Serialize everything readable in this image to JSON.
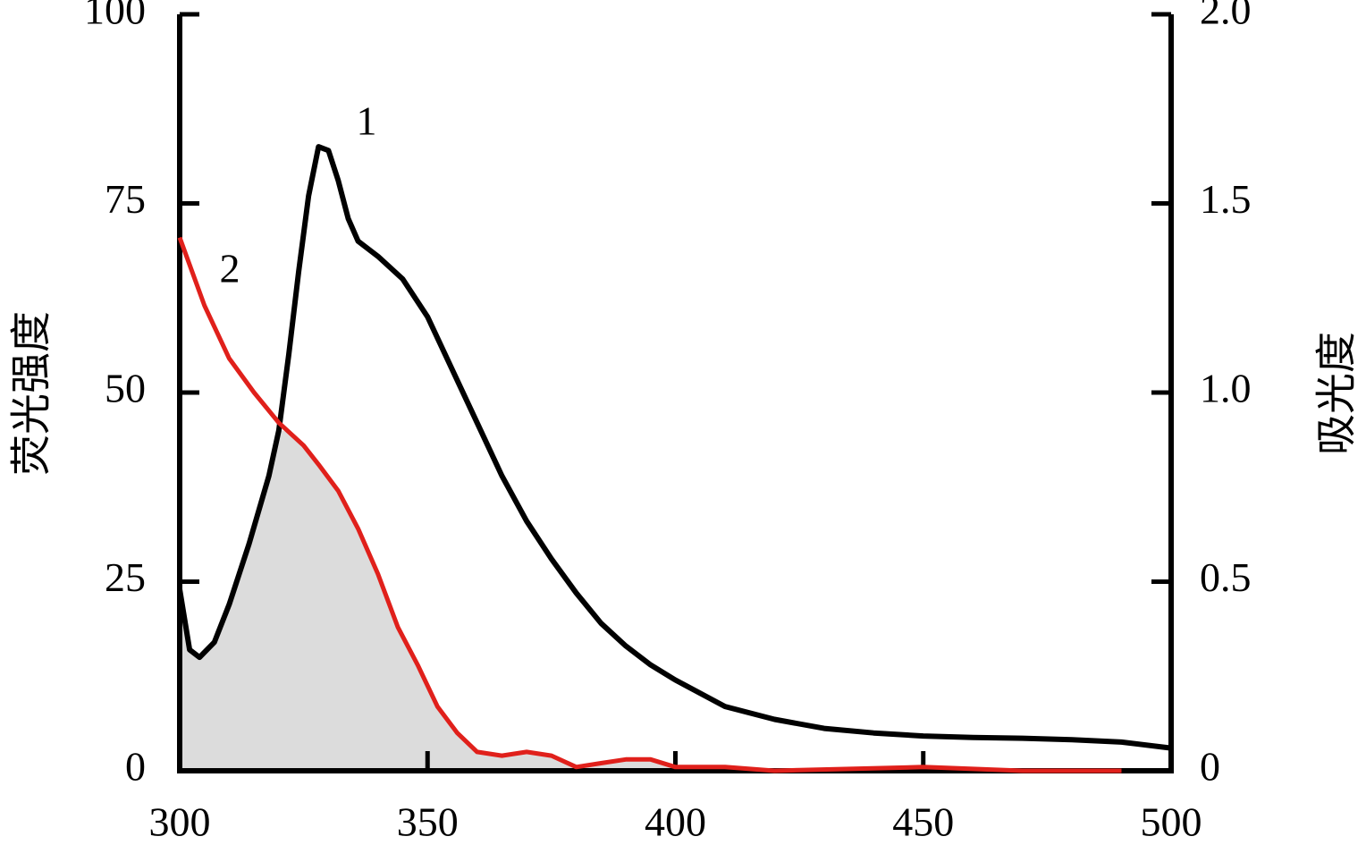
{
  "chart_data": {
    "type": "line",
    "ylabel": "荧光强度",
    "y2label": "吸光度",
    "annotations": [
      "1",
      "2"
    ],
    "xlim": [
      300,
      500
    ],
    "xticks": [
      300,
      350,
      400,
      450,
      500
    ],
    "ylim": [
      0,
      100
    ],
    "yticks": [
      0,
      25,
      50,
      75,
      100
    ],
    "y2lim": [
      0,
      2
    ],
    "y2ticks": [
      0,
      0.5,
      {
        "value": 1,
        "label": "1.0"
      },
      1.5,
      {
        "value": 2,
        "label": "2.0"
      }
    ],
    "overlap_color": "#dcdcdc",
    "series": [
      {
        "color": "#000000",
        "x": [
          300,
          302,
          304,
          307,
          310,
          314,
          318,
          320,
          322,
          324,
          326,
          328,
          330,
          332,
          334,
          336,
          340,
          345,
          350,
          355,
          360,
          365,
          370,
          375,
          380,
          385,
          390,
          395,
          400,
          410,
          420,
          430,
          440,
          450,
          460,
          470,
          480,
          490,
          500
        ],
        "values": [
          24,
          16,
          15,
          17,
          22,
          30,
          39,
          45,
          55,
          66,
          76,
          82.5,
          82,
          78,
          73,
          70,
          68,
          65,
          60,
          53,
          46,
          39,
          33,
          28,
          23.5,
          19.5,
          16.5,
          14,
          12,
          8.5,
          6.8,
          5.6,
          5,
          4.6,
          4.4,
          4.3,
          4.1,
          3.8,
          3
        ]
      },
      {
        "color": "#e0201b",
        "axis": "y2",
        "x": [
          300,
          305,
          310,
          315,
          320,
          325,
          328,
          332,
          336,
          340,
          344,
          348,
          352,
          356,
          360,
          365,
          370,
          375,
          380,
          385,
          390,
          395,
          400,
          410,
          420,
          450,
          470,
          490
        ],
        "values": [
          1.41,
          1.23,
          1.09,
          1.0,
          0.92,
          0.86,
          0.81,
          0.74,
          0.64,
          0.52,
          0.38,
          0.28,
          0.17,
          0.1,
          0.05,
          0.04,
          0.05,
          0.04,
          0.01,
          0.02,
          0.03,
          0.03,
          0.01,
          0.01,
          0,
          0.01,
          0,
          0
        ]
      }
    ]
  }
}
